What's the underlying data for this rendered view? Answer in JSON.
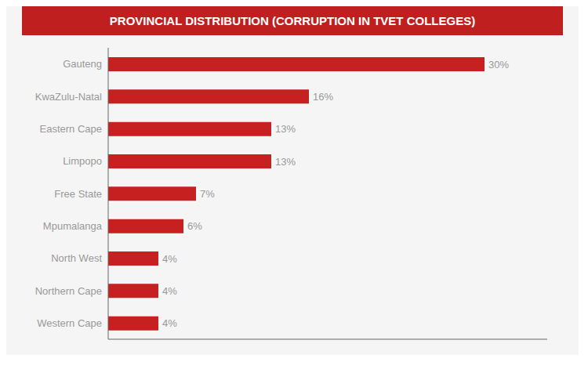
{
  "chart_data": {
    "type": "bar",
    "title": "PROVINCIAL DISTRIBUTION (CORRUPTION IN TVET COLLEGES)",
    "orientation": "horizontal",
    "categories": [
      "Gauteng",
      "KwaZulu-Natal",
      "Eastern Cape",
      "Limpopo",
      "Free State",
      "Mpumalanga",
      "North West",
      "Northern Cape",
      "Western Cape"
    ],
    "values": [
      30,
      16,
      13,
      13,
      7,
      6,
      4,
      4,
      4
    ],
    "value_labels": [
      "30%",
      "16%",
      "13%",
      "13%",
      "7%",
      "6%",
      "4%",
      "4%",
      "4%"
    ],
    "color": "#c62020",
    "xlim": [
      0,
      35
    ],
    "data_labels": true,
    "tick_labels": "y",
    "grid": false
  }
}
